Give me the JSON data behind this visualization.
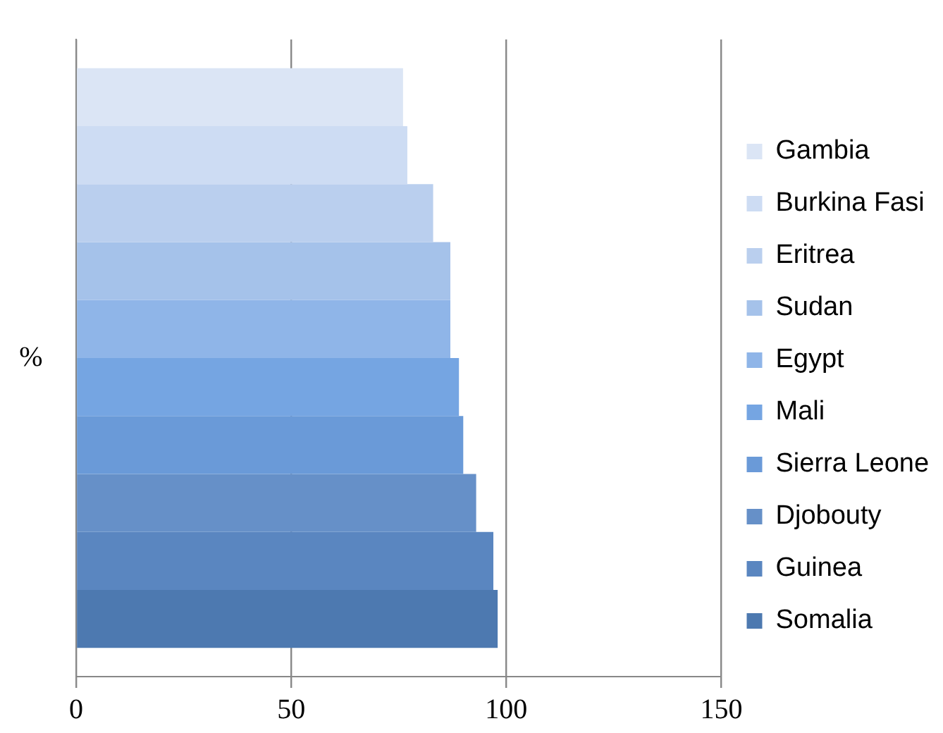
{
  "chart_data": {
    "type": "bar",
    "orientation": "horizontal",
    "ylabel": "%",
    "categories": [
      null
    ],
    "series": [
      {
        "name": "Gambia",
        "color": "#dbe5f5",
        "values": [
          76
        ]
      },
      {
        "name": "Burkina Fasi",
        "color": "#cddcf3",
        "values": [
          77
        ]
      },
      {
        "name": "Eritrea",
        "color": "#bacfee",
        "values": [
          83
        ]
      },
      {
        "name": "Sudan",
        "color": "#a5c2ea",
        "values": [
          87
        ]
      },
      {
        "name": "Egypt",
        "color": "#8fb5e8",
        "values": [
          87
        ]
      },
      {
        "name": "Mali",
        "color": "#75a5e2",
        "values": [
          89
        ]
      },
      {
        "name": "Sierra Leone",
        "color": "#6a9ad8",
        "values": [
          90
        ]
      },
      {
        "name": "Djobouty",
        "color": "#6690c8",
        "values": [
          93
        ]
      },
      {
        "name": "Guinea",
        "color": "#5a86c0",
        "values": [
          97
        ]
      },
      {
        "name": "Somalia",
        "color": "#4d79b0",
        "values": [
          98
        ]
      }
    ],
    "xlim": [
      0,
      150
    ],
    "xticks": [
      0,
      50,
      100,
      150
    ],
    "grid": "x",
    "legend": "right"
  }
}
